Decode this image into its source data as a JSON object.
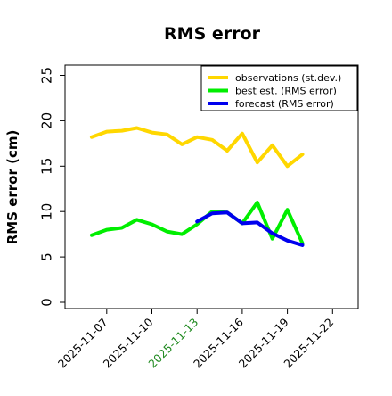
{
  "chart_data": {
    "type": "line",
    "title": "RMS error",
    "ylabel": "RMS error (cm)",
    "xlabel": "",
    "ylim": [
      0,
      25
    ],
    "xlim": [
      "2025-11-05",
      "2025-11-25"
    ],
    "yticks": [
      0,
      5,
      10,
      15,
      20,
      25
    ],
    "xticks": [
      "2025-11-07",
      "2025-11-10",
      "2025-11-13",
      "2025-11-16",
      "2025-11-19",
      "2025-11-22"
    ],
    "highlight_tick": "2025-11-13",
    "grid": false,
    "legend_position": "top-right",
    "series": [
      {
        "name": "observations (st.dev.)",
        "color": "#FFD700",
        "x": [
          "2025-11-06",
          "2025-11-07",
          "2025-11-08",
          "2025-11-09",
          "2025-11-10",
          "2025-11-11",
          "2025-11-12",
          "2025-11-13",
          "2025-11-14",
          "2025-11-15",
          "2025-11-16",
          "2025-11-17",
          "2025-11-18",
          "2025-11-19",
          "2025-11-20"
        ],
        "values": [
          18.2,
          18.8,
          18.9,
          19.2,
          18.7,
          18.5,
          17.4,
          18.2,
          17.9,
          16.7,
          18.6,
          15.4,
          17.3,
          15.0,
          16.3
        ]
      },
      {
        "name": "best est. (RMS error)",
        "color": "#00EE00",
        "x": [
          "2025-11-06",
          "2025-11-07",
          "2025-11-08",
          "2025-11-09",
          "2025-11-10",
          "2025-11-11",
          "2025-11-12",
          "2025-11-13",
          "2025-11-14",
          "2025-11-15",
          "2025-11-16",
          "2025-11-17",
          "2025-11-18",
          "2025-11-19",
          "2025-11-20"
        ],
        "values": [
          7.4,
          8.0,
          8.2,
          9.1,
          8.6,
          7.8,
          7.5,
          8.6,
          10.0,
          9.9,
          8.7,
          11.0,
          7.0,
          10.2,
          6.5
        ]
      },
      {
        "name": "forecast (RMS error)",
        "color": "#0000EE",
        "x": [
          "2025-11-13",
          "2025-11-14",
          "2025-11-15",
          "2025-11-16",
          "2025-11-17",
          "2025-11-18",
          "2025-11-19",
          "2025-11-20"
        ],
        "values": [
          8.9,
          9.8,
          9.9,
          8.7,
          8.8,
          7.6,
          6.8,
          6.3
        ]
      }
    ]
  }
}
